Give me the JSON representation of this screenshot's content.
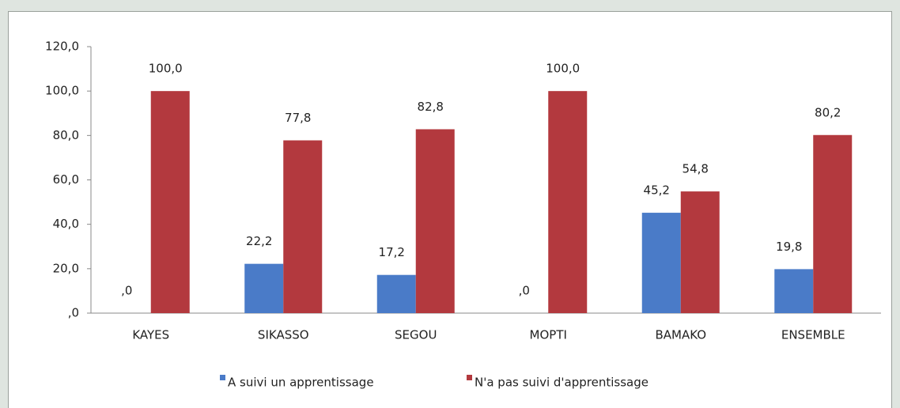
{
  "chart_data": {
    "type": "bar",
    "categories": [
      "KAYES",
      "SIKASSO",
      "SEGOU",
      "MOPTI",
      "BAMAKO",
      "ENSEMBLE"
    ],
    "series": [
      {
        "name": "A suivi un apprentissage",
        "color": "#4a7bc8",
        "values": [
          0,
          22.2,
          17.2,
          0,
          45.2,
          19.8
        ],
        "value_labels": [
          ",0",
          "22,2",
          "17,2",
          ",0",
          "45,2",
          "19,8"
        ]
      },
      {
        "name": "N'a pas suivi d'apprentissage",
        "color": "#b3393e",
        "values": [
          100,
          77.8,
          82.8,
          100,
          54.8,
          80.2
        ],
        "value_labels": [
          "100,0",
          "77,8",
          "82,8",
          "100,0",
          "54,8",
          "80,2"
        ]
      }
    ],
    "ylim": [
      0,
      120
    ],
    "yticks": [
      {
        "value": 0,
        "label": ",0"
      },
      {
        "value": 20,
        "label": "20,0"
      },
      {
        "value": 40,
        "label": "40,0"
      },
      {
        "value": 60,
        "label": "60,0"
      },
      {
        "value": 80,
        "label": "80,0"
      },
      {
        "value": 100,
        "label": "100,0"
      },
      {
        "value": 120,
        "label": "120,0"
      }
    ],
    "grid": false,
    "legend": "bottom"
  }
}
